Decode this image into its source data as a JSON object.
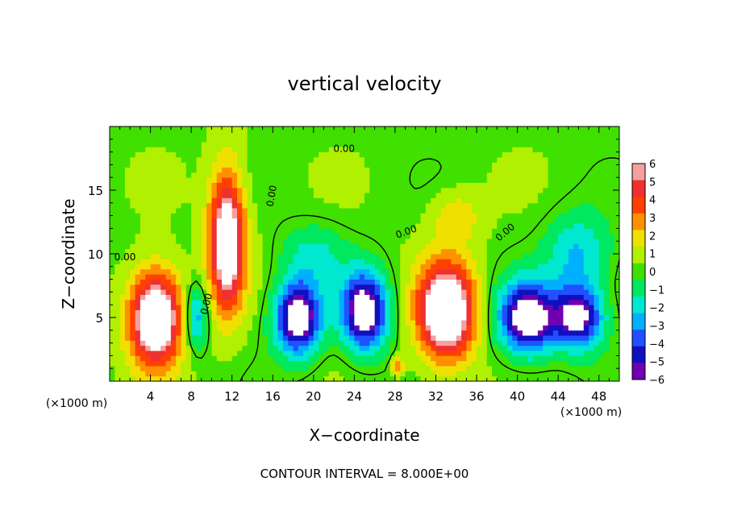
{
  "chart_data": {
    "type": "heatmap",
    "title": "vertical velocity",
    "xlabel": "X−coordinate",
    "ylabel": "Z−coordinate",
    "x_unit_note": "(×1000 m)",
    "y_unit_note": "(×1000 m)",
    "footer": "CONTOUR INTERVAL = 8.000E+00",
    "xlim": [
      0,
      50
    ],
    "ylim": [
      0,
      20
    ],
    "x_ticks": [
      4,
      8,
      12,
      16,
      20,
      24,
      28,
      32,
      36,
      40,
      44,
      48
    ],
    "x_tick_labels": [
      "4",
      "8",
      "12",
      "16",
      "20",
      "24",
      "28",
      "32",
      "36",
      "40",
      "44",
      "48"
    ],
    "y_ticks": [
      5,
      10,
      15
    ],
    "y_tick_labels": [
      "5",
      "10",
      "15"
    ],
    "colorbar": {
      "range": [
        -6,
        6
      ],
      "labels": [
        "6",
        "5",
        "4",
        "3",
        "2",
        "1",
        "0",
        "−1",
        "−2",
        "−3",
        "−4",
        "−5",
        "−6"
      ],
      "colors": [
        "#f5a0a0",
        "#f03030",
        "#ff4000",
        "#ff9000",
        "#f0e000",
        "#b0f000",
        "#40e000",
        "#00e860",
        "#00e8d0",
        "#00b0ff",
        "#2050ff",
        "#1010c0",
        "#7000b0"
      ]
    },
    "contour_labels": [
      "0.00",
      "0.00",
      "0.00",
      "0.00",
      "0.00",
      "0.00"
    ],
    "features": [
      {
        "kind": "updraft",
        "x": 4.5,
        "z": 5.0,
        "rx": 3.2,
        "rz": 4.6,
        "peak": 9
      },
      {
        "kind": "updraft",
        "x": 11.5,
        "z": 11.0,
        "rx": 2.2,
        "rz": 7.0,
        "peak": 8
      },
      {
        "kind": "updraft",
        "x": 33.0,
        "z": 5.5,
        "rx": 3.5,
        "rz": 4.8,
        "peak": 9
      },
      {
        "kind": "updraft",
        "x": 28.3,
        "z": 1.2,
        "rx": 0.6,
        "rz": 0.8,
        "peak": 5
      },
      {
        "kind": "updraft",
        "x": 34.0,
        "z": 13.0,
        "rx": 3.0,
        "rz": 2.5,
        "peak": 2
      },
      {
        "kind": "downdraft",
        "x": 8.5,
        "z": 5.0,
        "rx": 1.4,
        "rz": 3.0,
        "peak": -4
      },
      {
        "kind": "downdraft",
        "x": 18.5,
        "z": 5.0,
        "rx": 2.8,
        "rz": 3.6,
        "peak": -8
      },
      {
        "kind": "downdraft",
        "x": 25.0,
        "z": 5.5,
        "rx": 2.8,
        "rz": 3.8,
        "peak": -8
      },
      {
        "kind": "downdraft",
        "x": 41.0,
        "z": 5.0,
        "rx": 3.5,
        "rz": 3.5,
        "peak": -8
      },
      {
        "kind": "downdraft",
        "x": 46.0,
        "z": 5.0,
        "rx": 3.0,
        "rz": 3.0,
        "peak": -7
      },
      {
        "kind": "downdraft",
        "x": 46.0,
        "z": 10.0,
        "rx": 4.0,
        "rz": 4.0,
        "peak": -3
      },
      {
        "kind": "downdraft",
        "x": 20.0,
        "z": 10.0,
        "rx": 4.0,
        "rz": 3.0,
        "peak": -2
      }
    ]
  }
}
